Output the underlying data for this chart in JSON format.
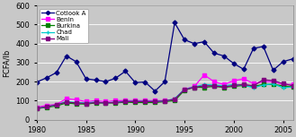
{
  "years": [
    1980,
    1981,
    1982,
    1983,
    1984,
    1985,
    1986,
    1987,
    1988,
    1989,
    1990,
    1991,
    1992,
    1993,
    1994,
    1995,
    1996,
    1997,
    1998,
    1999,
    2000,
    2001,
    2002,
    2003,
    2004,
    2005,
    2006
  ],
  "cotlook_a": [
    198,
    220,
    248,
    335,
    305,
    215,
    208,
    200,
    218,
    255,
    195,
    198,
    150,
    200,
    510,
    420,
    400,
    410,
    350,
    335,
    295,
    265,
    375,
    385,
    260,
    305,
    320
  ],
  "benin": [
    65,
    75,
    80,
    110,
    105,
    95,
    100,
    95,
    100,
    100,
    100,
    100,
    100,
    100,
    105,
    160,
    175,
    235,
    200,
    185,
    205,
    215,
    190,
    200,
    200,
    185,
    185
  ],
  "burkina": [
    58,
    65,
    72,
    88,
    83,
    82,
    88,
    88,
    88,
    92,
    90,
    90,
    90,
    95,
    100,
    155,
    170,
    170,
    175,
    170,
    175,
    180,
    175,
    185,
    185,
    178,
    172
  ],
  "chad": [
    60,
    68,
    78,
    95,
    90,
    88,
    92,
    88,
    92,
    96,
    96,
    96,
    96,
    98,
    110,
    160,
    172,
    185,
    182,
    178,
    185,
    182,
    168,
    182,
    188,
    168,
    172
  ],
  "mali": [
    60,
    68,
    78,
    92,
    88,
    85,
    90,
    88,
    90,
    95,
    95,
    95,
    95,
    98,
    108,
    158,
    170,
    178,
    178,
    172,
    180,
    185,
    178,
    210,
    205,
    190,
    178
  ],
  "cotlook_color": "#000080",
  "benin_color": "#FF00FF",
  "burkina_color": "#008000",
  "chad_color": "#00CCCC",
  "mali_color": "#800080",
  "ylabel": "FCFA/lb",
  "xlim": [
    1980,
    2006
  ],
  "ylim": [
    0,
    600
  ],
  "yticks": [
    0,
    100,
    200,
    300,
    400,
    500,
    600
  ],
  "xticks": [
    1980,
    1985,
    1990,
    1995,
    2000,
    2005
  ],
  "plot_bg_color": "#C8C8C8",
  "fig_bg_color": "#C8C8C8",
  "legend_entries": [
    "Cotlook A",
    "Benin",
    "Burkina",
    "Chad",
    "Mali"
  ]
}
